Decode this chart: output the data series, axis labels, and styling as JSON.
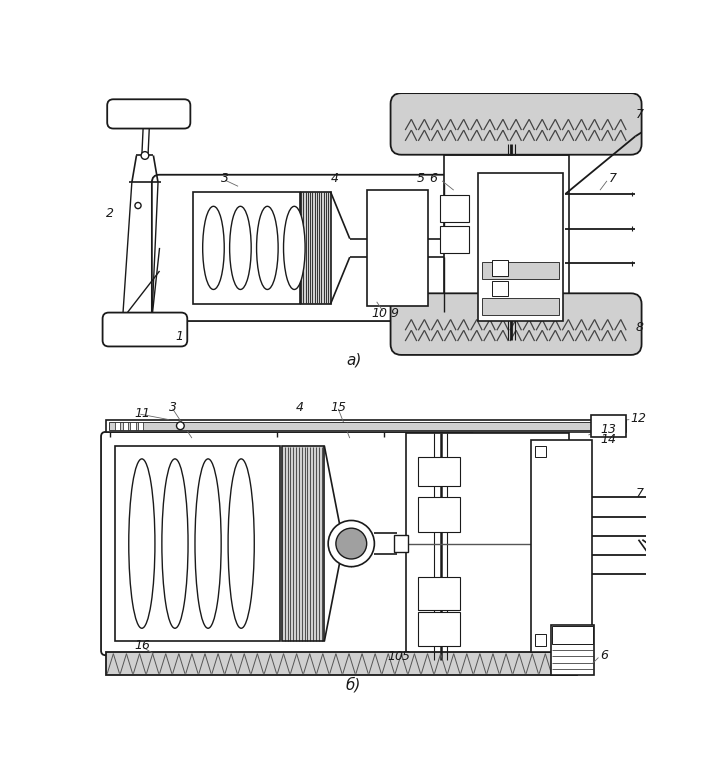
{
  "bg": "#ffffff",
  "lc": "#1a1a1a",
  "gray_light": "#d0d0d0",
  "gray_med": "#a0a0a0",
  "gray_dark": "#666666",
  "fig_w": 7.2,
  "fig_h": 7.76,
  "dpi": 100,
  "label_a": "а)",
  "label_b": "б)"
}
